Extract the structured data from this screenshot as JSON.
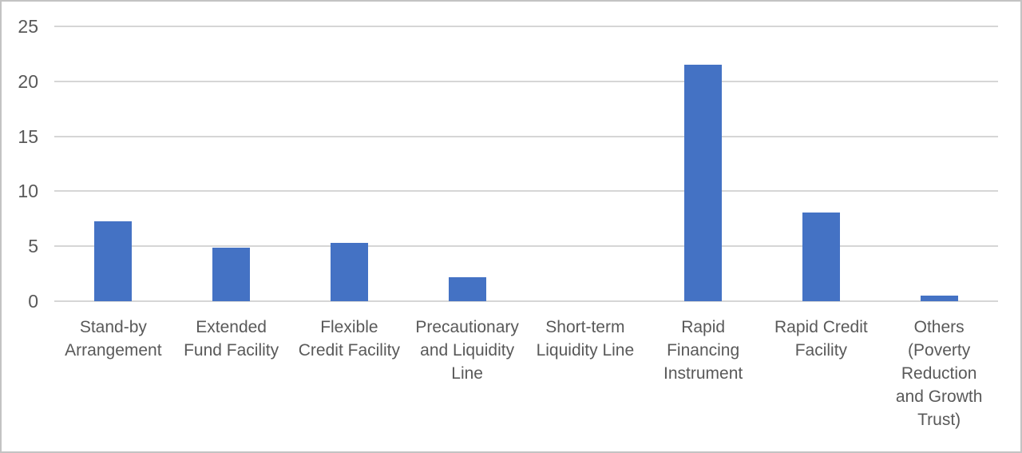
{
  "chart_data": {
    "type": "bar",
    "title": "",
    "xlabel": "",
    "ylabel": "",
    "categories": [
      "Stand-by Arrangement",
      "Extended Fund Facility",
      "Flexible Credit Facility",
      "Precautionary and Liquidity Line",
      "Short-term Liquidity Line",
      "Rapid Financing Instrument",
      "Rapid Credit Facility",
      "Others (Poverty Reduction and Growth Trust)"
    ],
    "category_label_lines": [
      "Stand-by\nArrangement",
      "Extended\nFund Facility",
      "Flexible\nCredit Facility",
      "Precautionary\nand Liquidity\nLine",
      "Short-term\nLiquidity Line",
      "Rapid\nFinancing\nInstrument",
      "Rapid Credit\nFacility",
      "Others\n(Poverty\nReduction\nand Growth\nTrust)"
    ],
    "values": [
      7.3,
      4.9,
      5.3,
      2.2,
      0,
      21.5,
      8.1,
      0.5
    ],
    "ylim": [
      0,
      25
    ],
    "yticks": [
      0,
      5,
      10,
      15,
      20,
      25
    ],
    "grid": true,
    "legend": false,
    "legend_position": "none"
  },
  "colors": {
    "bar": "#4472c4",
    "gridline": "#d6d6d6",
    "axis_text": "#595959",
    "border": "#c3c3c3",
    "background": "#ffffff"
  }
}
